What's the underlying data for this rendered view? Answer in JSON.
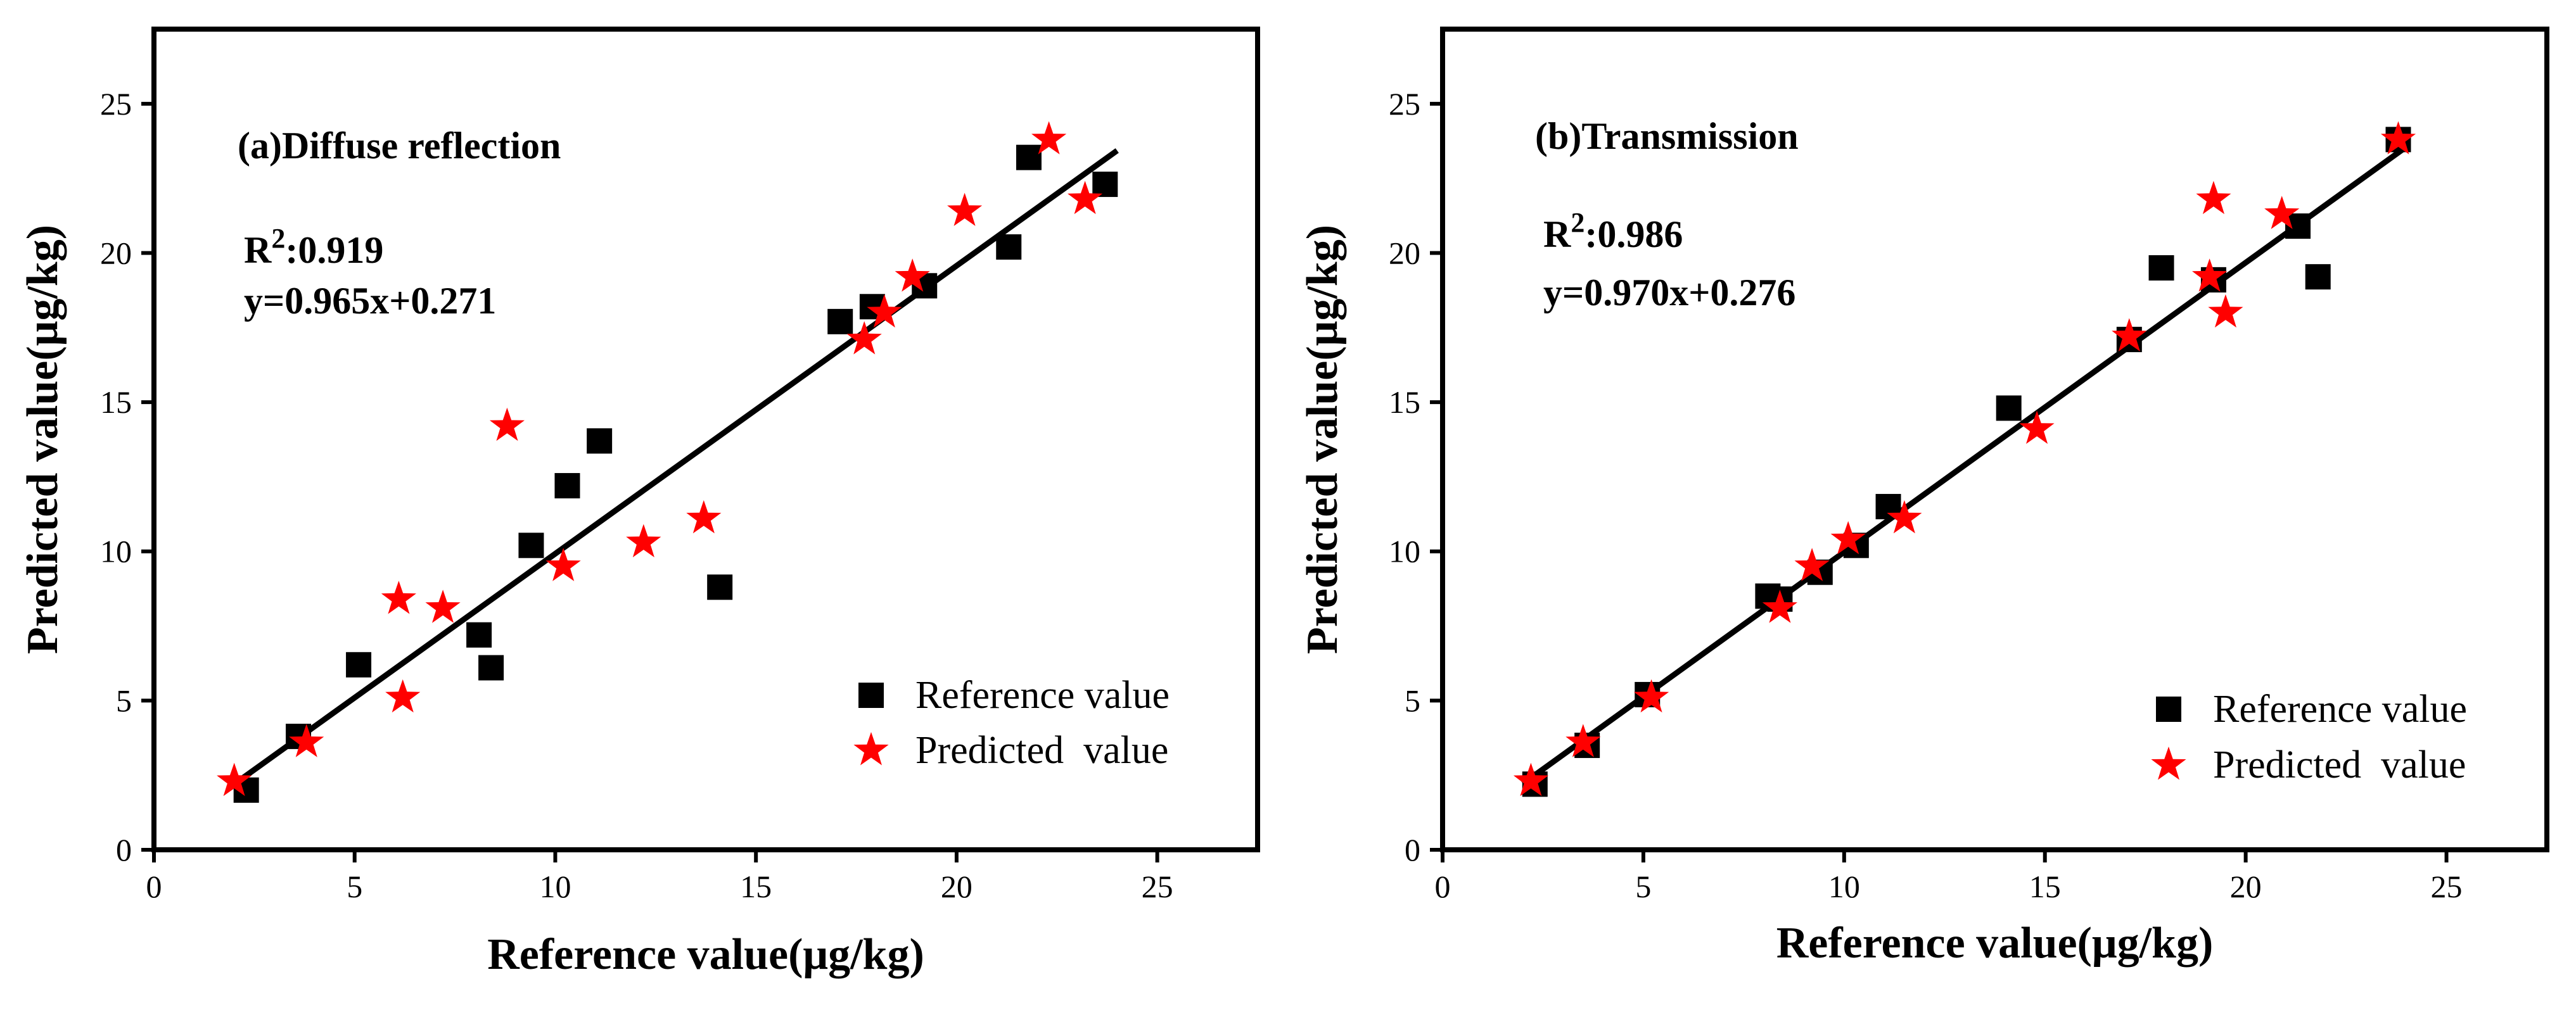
{
  "chart_data": [
    {
      "type": "scatter",
      "panel_label": "(a)Diffuse reflection",
      "r2_prefix": "R",
      "r2_sup": "2",
      "r2_value": ":0.919",
      "equation": "y=0.965x+0.271",
      "fit": {
        "slope": 0.965,
        "intercept": 0.271,
        "x_range": [
          2,
          24
        ]
      },
      "xlabel": "Reference value(μg/kg)",
      "ylabel": "Predicted value(μg/kg)",
      "xlim": [
        0,
        27.5
      ],
      "ylim": [
        0,
        27.5
      ],
      "xticks": [
        0,
        5,
        10,
        15,
        20,
        25
      ],
      "yticks": [
        0,
        5,
        10,
        15,
        20,
        25
      ],
      "legend_position": "bottom-right",
      "series": [
        {
          "name": "Reference value",
          "marker": "square",
          "color": "#000000",
          "points": [
            [
              2.3,
              2.0
            ],
            [
              3.6,
              3.8
            ],
            [
              5.1,
              6.2
            ],
            [
              8.1,
              7.2
            ],
            [
              8.4,
              6.1
            ],
            [
              9.4,
              10.2
            ],
            [
              10.3,
              12.2
            ],
            [
              11.1,
              13.7
            ],
            [
              14.1,
              8.8
            ],
            [
              17.1,
              17.7
            ],
            [
              17.9,
              18.2
            ],
            [
              19.2,
              18.9
            ],
            [
              21.3,
              20.2
            ],
            [
              21.8,
              23.2
            ],
            [
              23.7,
              22.3
            ]
          ]
        },
        {
          "name": "Predicted  value",
          "marker": "star",
          "color": "#ff0000",
          "points": [
            [
              2.0,
              2.3
            ],
            [
              3.8,
              3.6
            ],
            [
              6.1,
              8.4
            ],
            [
              6.2,
              5.1
            ],
            [
              7.2,
              8.1
            ],
            [
              8.8,
              14.2
            ],
            [
              10.2,
              9.5
            ],
            [
              12.2,
              10.3
            ],
            [
              13.7,
              11.1
            ],
            [
              17.7,
              17.1
            ],
            [
              18.2,
              18.0
            ],
            [
              18.9,
              19.2
            ],
            [
              20.2,
              21.4
            ],
            [
              22.3,
              23.8
            ],
            [
              23.2,
              21.8
            ]
          ]
        }
      ]
    },
    {
      "type": "scatter",
      "panel_label": "(b)Transmission",
      "r2_prefix": "R",
      "r2_sup": "2",
      "r2_value": ":0.986",
      "equation": "y=0.970x+0.276",
      "fit": {
        "slope": 0.97,
        "intercept": 0.276,
        "x_range": [
          2,
          24
        ]
      },
      "xlabel": "Reference value(μg/kg)",
      "ylabel": "Predicted value(μg/kg)",
      "xlim": [
        0,
        27.5
      ],
      "ylim": [
        0,
        27.5
      ],
      "xticks": [
        0,
        5,
        10,
        15,
        20,
        25
      ],
      "yticks": [
        0,
        5,
        10,
        15,
        20,
        25
      ],
      "legend_position": "bottom-right",
      "series": [
        {
          "name": "Reference value",
          "marker": "square",
          "color": "#000000",
          "points": [
            [
              2.3,
              2.2
            ],
            [
              3.6,
              3.5
            ],
            [
              5.1,
              5.2
            ],
            [
              8.1,
              8.5
            ],
            [
              8.4,
              8.4
            ],
            [
              9.4,
              9.3
            ],
            [
              10.3,
              10.2
            ],
            [
              11.1,
              11.5
            ],
            [
              14.1,
              14.8
            ],
            [
              17.1,
              17.1
            ],
            [
              17.9,
              19.5
            ],
            [
              19.2,
              19.1
            ],
            [
              21.3,
              20.9
            ],
            [
              21.8,
              19.2
            ],
            [
              23.8,
              23.8
            ]
          ]
        },
        {
          "name": "Predicted  value",
          "marker": "star",
          "color": "#ff0000",
          "points": [
            [
              2.2,
              2.3
            ],
            [
              3.5,
              3.6
            ],
            [
              5.2,
              5.1
            ],
            [
              8.4,
              8.1
            ],
            [
              9.2,
              9.5
            ],
            [
              10.1,
              10.4
            ],
            [
              11.5,
              11.1
            ],
            [
              14.8,
              14.1
            ],
            [
              17.1,
              17.2
            ],
            [
              19.1,
              19.2
            ],
            [
              19.2,
              21.8
            ],
            [
              19.5,
              18.0
            ],
            [
              20.9,
              21.3
            ],
            [
              23.8,
              23.8
            ]
          ]
        }
      ]
    }
  ]
}
